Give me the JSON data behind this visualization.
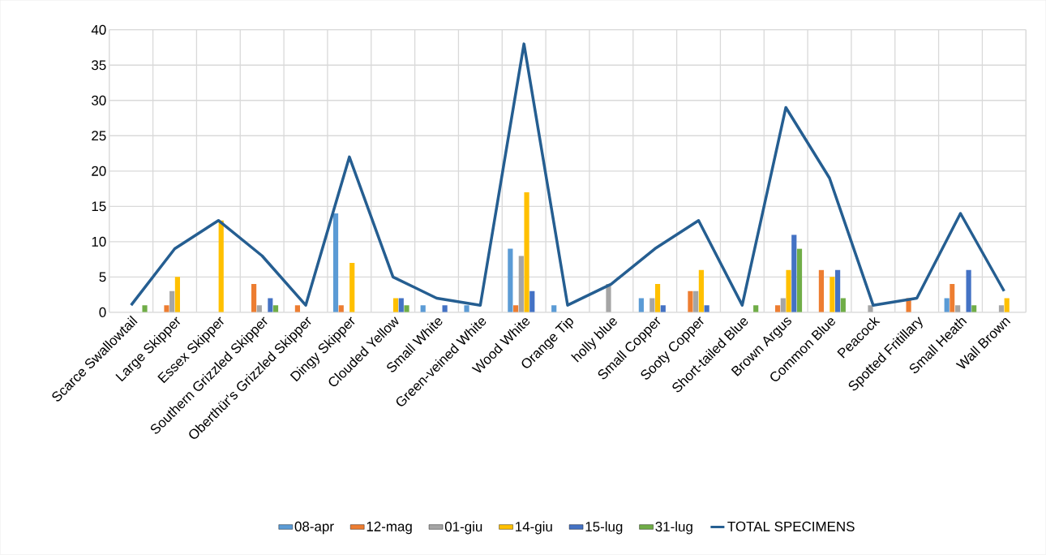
{
  "chart_data": {
    "type": "bar",
    "categories": [
      "Scarce Swallowtail",
      "Large Skipper",
      "Essex Skipper",
      "Southern Grizzled Skipper",
      "Oberthür's Grizzled Skipper",
      "Dingy Skipper",
      "Clouded Yellow",
      "Small White",
      "Green-veined White",
      "Wood White",
      "Orange Tip",
      "holly blue",
      "Small Copper",
      "Sooty Copper",
      "Short-tailed Blue",
      "Brown Argus",
      "Common Blue",
      "Peacock",
      "Spotted Fritillary",
      "Small Heath",
      "Wall Brown"
    ],
    "series": [
      {
        "name": "08-apr",
        "color": "#5b9bd5",
        "values": [
          null,
          null,
          null,
          null,
          null,
          14,
          null,
          1,
          1,
          9,
          1,
          null,
          2,
          null,
          null,
          null,
          null,
          null,
          null,
          2,
          null
        ]
      },
      {
        "name": "12-mag",
        "color": "#ed7d31",
        "values": [
          null,
          1,
          null,
          4,
          1,
          1,
          null,
          null,
          null,
          1,
          null,
          null,
          null,
          3,
          null,
          1,
          6,
          null,
          2,
          4,
          null
        ]
      },
      {
        "name": "01-giu",
        "color": "#a5a5a5",
        "values": [
          null,
          3,
          null,
          1,
          null,
          null,
          null,
          null,
          null,
          8,
          null,
          4,
          2,
          3,
          null,
          2,
          null,
          1,
          null,
          1,
          1
        ]
      },
      {
        "name": "14-giu",
        "color": "#ffc000",
        "values": [
          null,
          5,
          13,
          null,
          null,
          7,
          2,
          null,
          null,
          17,
          null,
          null,
          4,
          6,
          null,
          6,
          5,
          null,
          null,
          null,
          2
        ]
      },
      {
        "name": "15-lug",
        "color": "#4472c4",
        "values": [
          null,
          null,
          null,
          2,
          null,
          null,
          2,
          1,
          null,
          3,
          null,
          null,
          1,
          1,
          null,
          11,
          6,
          null,
          null,
          6,
          null
        ]
      },
      {
        "name": "31-lug",
        "color": "#70ad47",
        "values": [
          1,
          null,
          null,
          1,
          null,
          null,
          1,
          null,
          null,
          null,
          null,
          null,
          null,
          null,
          1,
          9,
          2,
          null,
          null,
          1,
          null
        ]
      },
      {
        "name": "TOTAL SPECIMENS",
        "type": "line",
        "color": "#255e91",
        "values": [
          1,
          9,
          13,
          8,
          1,
          22,
          5,
          2,
          1,
          38,
          1,
          4,
          9,
          13,
          1,
          29,
          19,
          1,
          2,
          14,
          3
        ]
      }
    ],
    "ylim": [
      0,
      40
    ],
    "yticks": [
      0,
      5,
      10,
      15,
      20,
      25,
      30,
      35,
      40
    ],
    "grid": true,
    "legend": "bottom"
  }
}
